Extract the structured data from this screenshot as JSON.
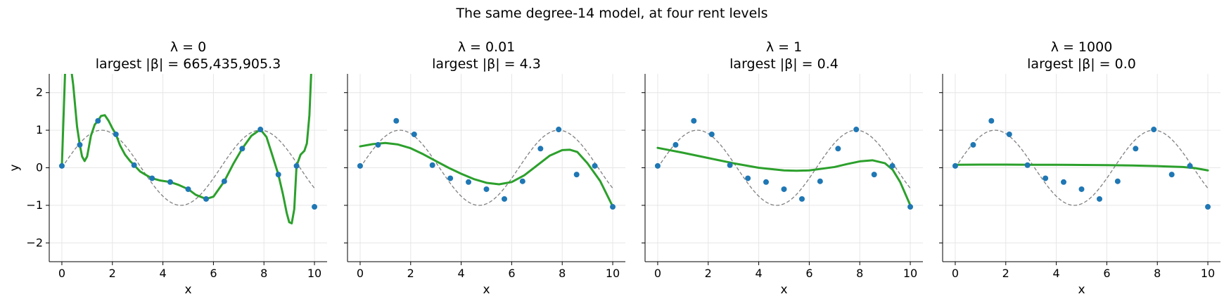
{
  "figure": {
    "suptitle": "The same degree-14 model, at four rent levels"
  },
  "chart_data": {
    "type": "line",
    "xlabel": "x",
    "ylabel": "y",
    "xlim": [
      -0.5,
      10.5
    ],
    "ylim": [
      -2.5,
      2.5
    ],
    "xticks": [
      0,
      2,
      4,
      6,
      8,
      10
    ],
    "yticks": [
      -2,
      -1,
      0,
      1,
      2
    ],
    "grid": true,
    "shared_y": true,
    "colors": {
      "data": "#1f77b4",
      "fit": "#2ca02c",
      "truth": "#808080"
    },
    "points": {
      "x": [
        0.0,
        0.71,
        1.43,
        2.14,
        2.86,
        3.57,
        4.29,
        5.0,
        5.71,
        6.43,
        7.14,
        7.86,
        8.57,
        9.29,
        10.0
      ],
      "y": [
        0.05,
        0.61,
        1.25,
        0.89,
        0.07,
        -0.28,
        -0.38,
        -0.57,
        -0.83,
        -0.36,
        0.51,
        1.02,
        -0.18,
        0.05,
        -1.04
      ]
    },
    "truth": {
      "function": "sin(x)",
      "style": "dashed"
    },
    "panels": [
      {
        "lambda_label": "λ = 0",
        "beta_label": "largest |β| = 665,435,905.3",
        "show_ylabel": true,
        "fit": {
          "x": [
            0.0,
            0.15,
            0.3,
            0.45,
            0.6,
            0.71,
            0.8,
            0.9,
            1.0,
            1.15,
            1.3,
            1.43,
            1.55,
            1.7,
            1.85,
            2.0,
            2.14,
            2.3,
            2.5,
            2.7,
            2.86,
            3.1,
            3.35,
            3.57,
            3.9,
            4.29,
            4.6,
            5.0,
            5.3,
            5.71,
            6.0,
            6.43,
            6.8,
            7.14,
            7.5,
            7.86,
            8.1,
            8.3,
            8.57,
            8.75,
            8.9,
            9.0,
            9.1,
            9.2,
            9.29,
            9.45,
            9.6,
            9.7,
            9.8,
            9.9,
            10.0
          ],
          "y": [
            0.05,
            3.0,
            3.0,
            2.2,
            1.1,
            0.61,
            0.3,
            0.18,
            0.3,
            0.85,
            1.15,
            1.25,
            1.38,
            1.4,
            1.25,
            1.05,
            0.89,
            0.6,
            0.35,
            0.18,
            0.07,
            -0.1,
            -0.2,
            -0.28,
            -0.34,
            -0.38,
            -0.45,
            -0.57,
            -0.72,
            -0.83,
            -0.77,
            -0.36,
            0.12,
            0.51,
            0.85,
            1.02,
            0.82,
            0.4,
            -0.18,
            -0.7,
            -1.2,
            -1.45,
            -1.48,
            -1.1,
            0.05,
            0.35,
            0.45,
            0.65,
            1.4,
            3.0,
            3.0
          ]
        }
      },
      {
        "lambda_label": "λ = 0.01",
        "beta_label": "largest |β| = 4.3",
        "show_ylabel": false,
        "fit": {
          "x": [
            0.0,
            0.5,
            1.0,
            1.5,
            2.0,
            2.5,
            3.0,
            3.5,
            4.0,
            4.5,
            5.0,
            5.5,
            6.0,
            6.5,
            7.0,
            7.5,
            8.0,
            8.3,
            8.6,
            9.0,
            9.5,
            10.0
          ],
          "y": [
            0.57,
            0.63,
            0.66,
            0.62,
            0.52,
            0.36,
            0.18,
            0.0,
            -0.16,
            -0.3,
            -0.4,
            -0.44,
            -0.38,
            -0.2,
            0.06,
            0.32,
            0.47,
            0.48,
            0.42,
            0.12,
            -0.35,
            -1.03
          ]
        }
      },
      {
        "lambda_label": "λ = 1",
        "beta_label": "largest |β| = 0.4",
        "show_ylabel": false,
        "fit": {
          "x": [
            0.0,
            1.0,
            2.0,
            3.0,
            4.0,
            5.0,
            5.5,
            6.0,
            7.0,
            7.5,
            8.0,
            8.5,
            9.0,
            9.3,
            9.6,
            10.0
          ],
          "y": [
            0.53,
            0.4,
            0.26,
            0.12,
            0.0,
            -0.07,
            -0.08,
            -0.07,
            0.02,
            0.1,
            0.17,
            0.2,
            0.12,
            -0.05,
            -0.38,
            -1.0
          ]
        }
      },
      {
        "lambda_label": "λ = 1000",
        "beta_label": "largest |β| = 0.0",
        "show_ylabel": false,
        "fit": {
          "x": [
            0.0,
            1.0,
            2.0,
            3.0,
            4.0,
            5.0,
            6.0,
            7.0,
            8.0,
            9.0,
            9.5,
            10.0
          ],
          "y": [
            0.08,
            0.085,
            0.085,
            0.08,
            0.08,
            0.075,
            0.07,
            0.06,
            0.045,
            0.02,
            -0.01,
            -0.07
          ]
        }
      }
    ]
  }
}
